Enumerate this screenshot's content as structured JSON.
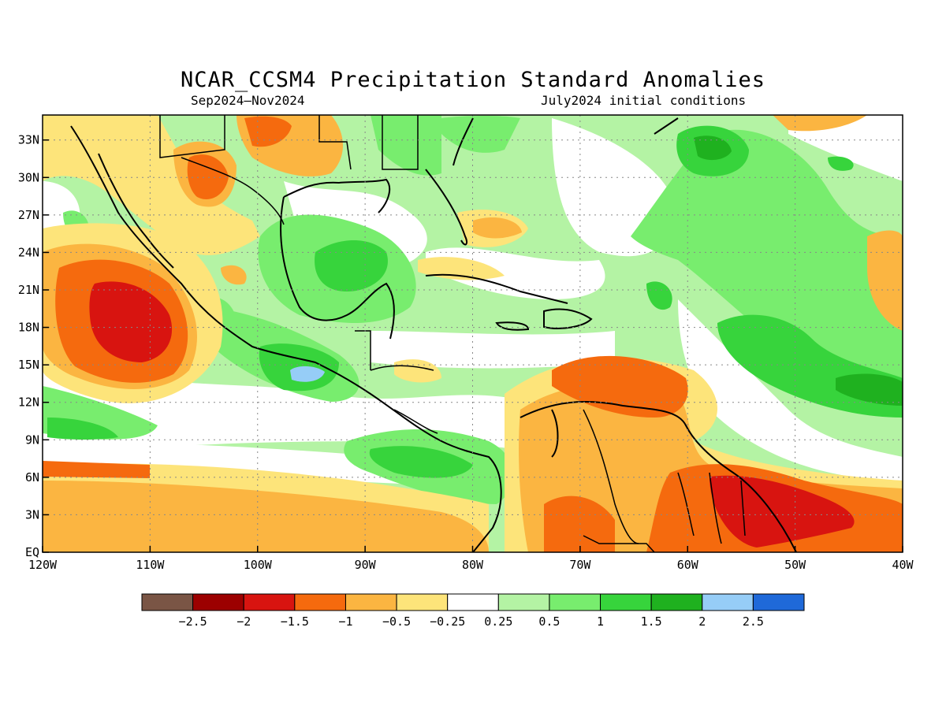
{
  "title": "NCAR_CCSM4 Precipitation Standard Anomalies",
  "period": "Sep2024–Nov2024",
  "init": "July2024 initial conditions",
  "map": {
    "lon_range": [
      -120,
      -40
    ],
    "lat_range": [
      0,
      35
    ],
    "lon_labels": [
      "120W",
      "110W",
      "100W",
      "90W",
      "80W",
      "70W",
      "60W",
      "50W",
      "40W"
    ],
    "lat_labels": [
      "EQ",
      "3N",
      "6N",
      "9N",
      "12N",
      "15N",
      "18N",
      "21N",
      "24N",
      "27N",
      "30N",
      "33N"
    ],
    "grid": true
  },
  "legend": {
    "colors": [
      "#7a5545",
      "#9c0000",
      "#d81410",
      "#f56a0e",
      "#fbb541",
      "#fde47a",
      "#ffffff",
      "#b4f3a4",
      "#78ed6e",
      "#37d43c",
      "#1fb11f",
      "#96cdf7",
      "#1f69d9"
    ],
    "labels": [
      "−2.5",
      "−2",
      "−1.5",
      "−1",
      "−0.5",
      "−0.25",
      "0.25",
      "0.5",
      "1",
      "1.5",
      "2",
      "2.5"
    ]
  }
}
